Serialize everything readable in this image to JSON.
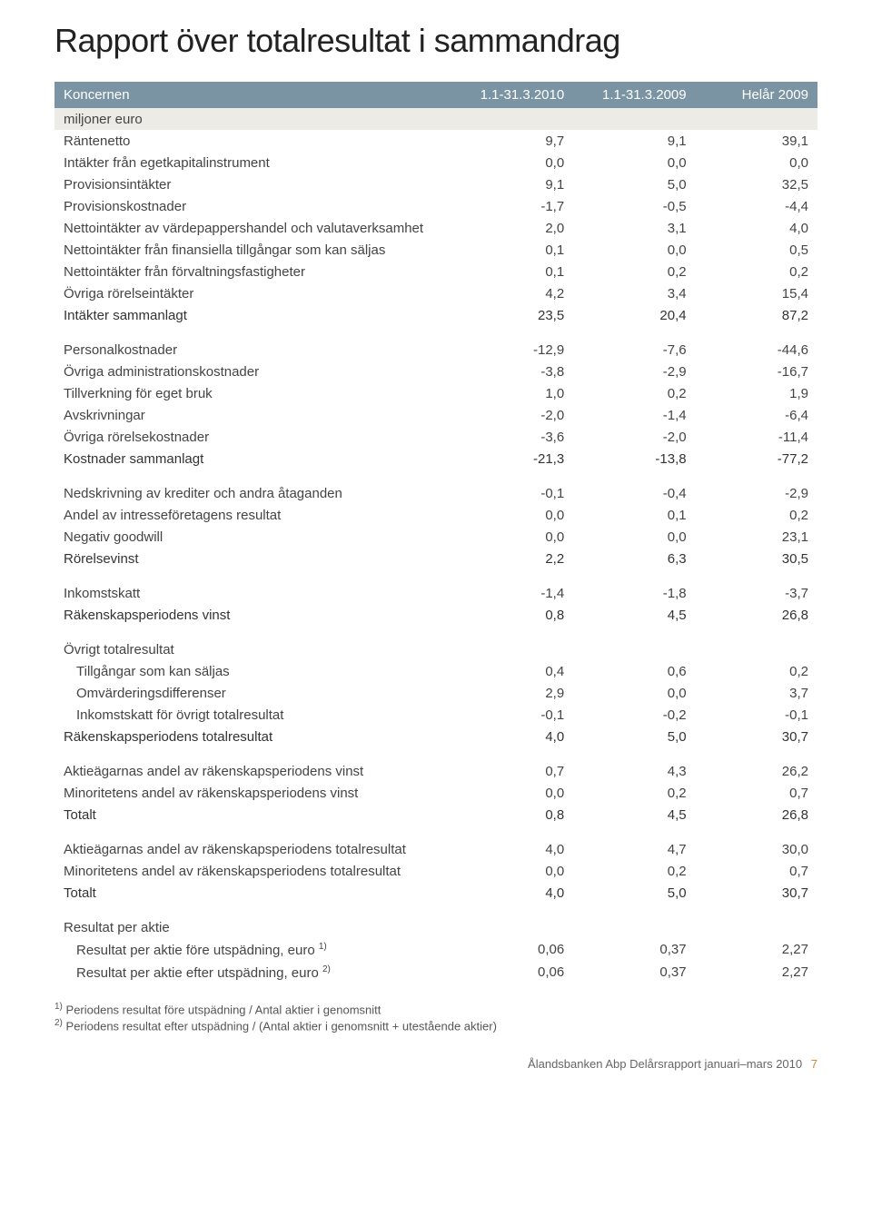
{
  "title": "Rapport över totalresultat i sammandrag",
  "columns": {
    "c0": "Koncernen",
    "c1": "1.1-31.3.2010",
    "c2": "1.1-31.3.2009",
    "c3": "Helår 2009"
  },
  "subhead": "miljoner euro",
  "rows": [
    {
      "l": "Räntenetto",
      "v": [
        "9,7",
        "9,1",
        "39,1"
      ]
    },
    {
      "l": "Intäkter från egetkapitalinstrument",
      "v": [
        "0,0",
        "0,0",
        "0,0"
      ]
    },
    {
      "l": "Provisionsintäkter",
      "v": [
        "9,1",
        "5,0",
        "32,5"
      ]
    },
    {
      "l": "Provisionskostnader",
      "v": [
        "-1,7",
        "-0,5",
        "-4,4"
      ]
    },
    {
      "l": "Nettointäkter av värdepappershandel och valutaverksamhet",
      "v": [
        "2,0",
        "3,1",
        "4,0"
      ]
    },
    {
      "l": "Nettointäkter från finansiella tillgångar som kan säljas",
      "v": [
        "0,1",
        "0,0",
        "0,5"
      ]
    },
    {
      "l": "Nettointäkter från förvaltningsfastigheter",
      "v": [
        "0,1",
        "0,2",
        "0,2"
      ]
    },
    {
      "l": "Övriga rörelseintäkter",
      "v": [
        "4,2",
        "3,4",
        "15,4"
      ]
    },
    {
      "l": "Intäkter sammanlagt",
      "v": [
        "23,5",
        "20,4",
        "87,2"
      ],
      "bold": true
    }
  ],
  "rows2": [
    {
      "l": "Personalkostnader",
      "v": [
        "-12,9",
        "-7,6",
        "-44,6"
      ]
    },
    {
      "l": "Övriga administrationskostnader",
      "v": [
        "-3,8",
        "-2,9",
        "-16,7"
      ]
    },
    {
      "l": "Tillverkning för eget bruk",
      "v": [
        "1,0",
        "0,2",
        "1,9"
      ]
    },
    {
      "l": "Avskrivningar",
      "v": [
        "-2,0",
        "-1,4",
        "-6,4"
      ]
    },
    {
      "l": "Övriga rörelsekostnader",
      "v": [
        "-3,6",
        "-2,0",
        "-11,4"
      ]
    },
    {
      "l": "Kostnader sammanlagt",
      "v": [
        "-21,3",
        "-13,8",
        "-77,2"
      ],
      "bold": true
    }
  ],
  "rows3": [
    {
      "l": "Nedskrivning av krediter och andra åtaganden",
      "v": [
        "-0,1",
        "-0,4",
        "-2,9"
      ]
    },
    {
      "l": "Andel av intresseföretagens resultat",
      "v": [
        "0,0",
        "0,1",
        "0,2"
      ]
    },
    {
      "l": "Negativ goodwill",
      "v": [
        "0,0",
        "0,0",
        "23,1"
      ]
    },
    {
      "l": "Rörelsevinst",
      "v": [
        "2,2",
        "6,3",
        "30,5"
      ],
      "bold": true
    }
  ],
  "rows4": [
    {
      "l": "Inkomstskatt",
      "v": [
        "-1,4",
        "-1,8",
        "-3,7"
      ]
    },
    {
      "l": "Räkenskapsperiodens vinst",
      "v": [
        "0,8",
        "4,5",
        "26,8"
      ],
      "bold": true
    }
  ],
  "rows5_head": "Övrigt totalresultat",
  "rows5": [
    {
      "l": "Tillgångar som kan säljas",
      "v": [
        "0,4",
        "0,6",
        "0,2"
      ],
      "indent": true
    },
    {
      "l": "Omvärderingsdifferenser",
      "v": [
        "2,9",
        "0,0",
        "3,7"
      ],
      "indent": true
    },
    {
      "l": "Inkomstskatt för övrigt totalresultat",
      "v": [
        "-0,1",
        "-0,2",
        "-0,1"
      ],
      "indent": true
    },
    {
      "l": "Räkenskapsperiodens totalresultat",
      "v": [
        "4,0",
        "5,0",
        "30,7"
      ],
      "bold": true
    }
  ],
  "rows6": [
    {
      "l": "Aktieägarnas andel av räkenskapsperiodens vinst",
      "v": [
        "0,7",
        "4,3",
        "26,2"
      ]
    },
    {
      "l": "Minoritetens andel av räkenskapsperiodens vinst",
      "v": [
        "0,0",
        "0,2",
        "0,7"
      ]
    },
    {
      "l": "Totalt",
      "v": [
        "0,8",
        "4,5",
        "26,8"
      ],
      "bold": true
    }
  ],
  "rows7": [
    {
      "l": "Aktieägarnas andel av räkenskapsperiodens totalresultat",
      "v": [
        "4,0",
        "4,7",
        "30,0"
      ]
    },
    {
      "l": "Minoritetens andel av räkenskapsperiodens totalresultat",
      "v": [
        "0,0",
        "0,2",
        "0,7"
      ]
    },
    {
      "l": "Totalt",
      "v": [
        "4,0",
        "5,0",
        "30,7"
      ],
      "bold": true
    }
  ],
  "rows8_head": "Resultat per aktie",
  "rows8": [
    {
      "l": "Resultat per aktie före utspädning, euro",
      "sup": "1)",
      "v": [
        "0,06",
        "0,37",
        "2,27"
      ],
      "indent": true
    },
    {
      "l": "Resultat per aktie efter utspädning, euro",
      "sup": "2)",
      "v": [
        "0,06",
        "0,37",
        "2,27"
      ],
      "indent": true
    }
  ],
  "footnotes": {
    "f1_sup": "1)",
    "f1": " Periodens resultat före utspädning / Antal aktier i genomsnitt",
    "f2_sup": "2)",
    "f2": " Periodens resultat efter utspädning / (Antal aktier i genomsnitt + utestående aktier)"
  },
  "footer": {
    "text": "Ålandsbanken Abp Delårsrapport januari–mars 2010",
    "page": "7"
  }
}
